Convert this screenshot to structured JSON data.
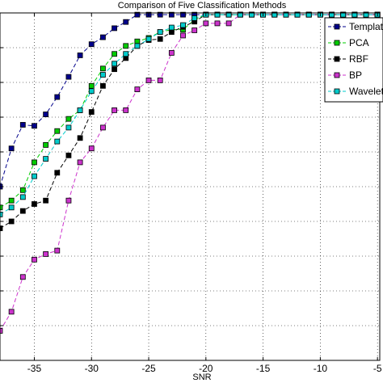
{
  "chart_data": {
    "type": "line",
    "title": "Comparison of Five Classification Methods",
    "xlabel": "SNR",
    "ylabel": "",
    "xlim": [
      -38,
      -4.8
    ],
    "ylim": [
      0,
      1
    ],
    "grid": true,
    "legend_position": "top-right",
    "x_ticks": [
      -35,
      -30,
      -25,
      -20,
      -15,
      -10,
      -5
    ],
    "x_tick_labels": [
      "-35",
      "-30",
      "-25",
      "-20",
      "-15",
      "-10",
      "-5"
    ],
    "series": [
      {
        "name": "Template",
        "color": "#00008b",
        "marker": "square",
        "x": [
          -38,
          -37,
          -36,
          -35,
          -34,
          -33,
          -32,
          -31,
          -30,
          -29,
          -28,
          -27,
          -26,
          -25,
          -24,
          -23,
          -22,
          -21,
          -20,
          -19,
          -18,
          -17,
          -16,
          -15,
          -14,
          -13,
          -12,
          -11,
          -10,
          -9,
          -8,
          -7,
          -6,
          -5
        ],
        "y": [
          0.5,
          0.61,
          0.678,
          0.675,
          0.708,
          0.758,
          0.816,
          0.878,
          0.91,
          0.93,
          0.956,
          0.974,
          0.995,
          0.995,
          0.995,
          0.995,
          0.995,
          0.995,
          0.995,
          0.995,
          0.995,
          0.995,
          0.995,
          0.995,
          0.995,
          0.995,
          0.995,
          0.995,
          0.995,
          0.995,
          0.995,
          0.995,
          0.995,
          0.995
        ]
      },
      {
        "name": "PCA",
        "color": "#00cc00",
        "marker": "square",
        "x": [
          -38,
          -37,
          -36,
          -35,
          -34,
          -33,
          -32,
          -31,
          -30,
          -29,
          -28,
          -27,
          -26,
          -25,
          -24,
          -23,
          -22,
          -21,
          -20,
          -19,
          -18,
          -17,
          -16,
          -15,
          -14,
          -13,
          -12,
          -11,
          -10,
          -9,
          -8,
          -7,
          -6,
          -5
        ],
        "y": [
          0.44,
          0.46,
          0.49,
          0.57,
          0.62,
          0.66,
          0.695,
          0.72,
          0.79,
          0.84,
          0.882,
          0.905,
          0.918,
          0.928,
          0.945,
          0.952,
          0.952,
          0.98,
          0.995,
          0.995,
          0.995,
          0.995,
          0.995,
          0.995,
          0.995,
          0.995,
          0.995,
          0.995,
          0.995,
          0.995,
          0.995,
          0.995,
          0.995,
          0.995
        ]
      },
      {
        "name": "RBF",
        "color": "#000000",
        "marker": "square",
        "x": [
          -38,
          -37,
          -36,
          -35,
          -34,
          -33,
          -32,
          -31,
          -30,
          -29,
          -28,
          -27,
          -26,
          -25,
          -24,
          -23,
          -22,
          -21,
          -20,
          -19,
          -18,
          -17,
          -16,
          -15,
          -14,
          -13,
          -12,
          -11,
          -10,
          -9,
          -8,
          -7,
          -6,
          -5
        ],
        "y": [
          0.38,
          0.4,
          0.43,
          0.45,
          0.46,
          0.54,
          0.59,
          0.64,
          0.715,
          0.79,
          0.838,
          0.87,
          0.905,
          0.922,
          0.925,
          0.945,
          0.96,
          0.975,
          0.995,
          0.995,
          0.995,
          0.995,
          0.995,
          0.995,
          0.995,
          0.995,
          0.995,
          0.995,
          0.995,
          0.995,
          0.995,
          0.995,
          0.995,
          0.995
        ]
      },
      {
        "name": "BP",
        "color": "#cc33cc",
        "marker": "square",
        "x": [
          -38,
          -37,
          -36,
          -35,
          -34,
          -33,
          -32,
          -31,
          -30,
          -29,
          -28,
          -27,
          -26,
          -25,
          -24,
          -23,
          -22,
          -21,
          -20,
          -19,
          -18,
          -17,
          -16,
          -15,
          -14,
          -13,
          -12,
          -11,
          -10,
          -9,
          -8,
          -7,
          -6,
          -5
        ],
        "y": [
          0.085,
          0.14,
          0.24,
          0.29,
          0.306,
          0.316,
          0.46,
          0.57,
          0.61,
          0.67,
          0.72,
          0.72,
          0.78,
          0.806,
          0.806,
          0.885,
          0.935,
          0.95,
          0.97,
          0.97,
          0.97,
          0.995,
          0.995,
          0.995,
          0.995,
          0.995,
          0.995,
          0.995,
          0.995,
          0.995,
          0.995,
          0.995,
          0.995,
          0.995
        ]
      },
      {
        "name": "Wavelet",
        "color": "#00cccc",
        "marker": "square",
        "x": [
          -38,
          -37,
          -36,
          -35,
          -34,
          -33,
          -32,
          -31,
          -30,
          -29,
          -28,
          -27,
          -26,
          -25,
          -24,
          -23,
          -22,
          -21,
          -20,
          -19,
          -18,
          -17,
          -16,
          -15,
          -14,
          -13,
          -12,
          -11,
          -10,
          -9,
          -8,
          -7,
          -6,
          -5
        ],
        "y": [
          0.42,
          0.44,
          0.47,
          0.53,
          0.58,
          0.63,
          0.67,
          0.72,
          0.775,
          0.822,
          0.854,
          0.882,
          0.905,
          0.925,
          0.945,
          0.958,
          0.965,
          0.985,
          0.995,
          0.995,
          0.995,
          0.995,
          0.995,
          0.995,
          0.995,
          0.995,
          0.995,
          0.995,
          0.995,
          0.995,
          0.995,
          0.995,
          0.995,
          0.995
        ]
      }
    ]
  }
}
